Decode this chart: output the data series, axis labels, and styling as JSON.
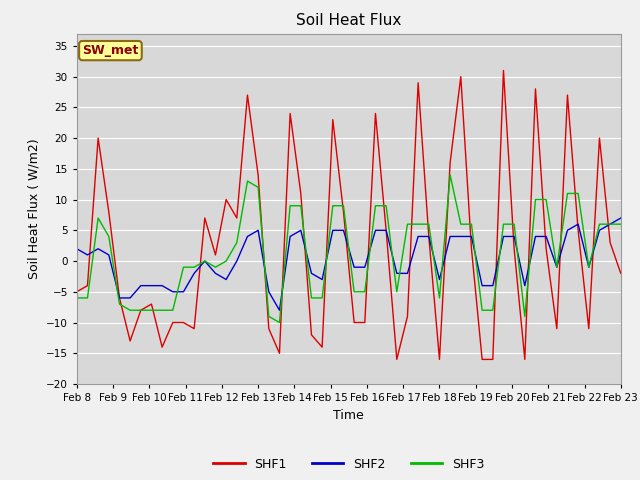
{
  "title": "Soil Heat Flux",
  "ylabel": "Soil Heat Flux ( W/m2)",
  "xlabel": "Time",
  "ylim": [
    -20,
    37
  ],
  "yticks": [
    -20,
    -15,
    -10,
    -5,
    0,
    5,
    10,
    15,
    20,
    25,
    30,
    35
  ],
  "annotation": "SW_met",
  "fig_facecolor": "#f0f0f0",
  "plot_facecolor": "#d8d8d8",
  "grid_color": "#ffffff",
  "shf1_color": "#dd0000",
  "shf2_color": "#0000cc",
  "shf3_color": "#00bb00",
  "x_labels": [
    "Feb 8",
    "Feb 9",
    "Feb 10",
    "Feb 11",
    "Feb 12",
    "Feb 13",
    "Feb 14",
    "Feb 15",
    "Feb 16",
    "Feb 17",
    "Feb 18",
    "Feb 19",
    "Feb 20",
    "Feb 21",
    "Feb 22",
    "Feb 23"
  ],
  "shf1": [
    -5,
    -4,
    20,
    8,
    -6,
    -13,
    -8,
    -7,
    -14,
    -10,
    -10,
    -11,
    7,
    1,
    10,
    7,
    27,
    14,
    -11,
    -15,
    24,
    11,
    -12,
    -14,
    23,
    8,
    -10,
    -10,
    24,
    5,
    -16,
    -9,
    29,
    4,
    -16,
    16,
    30,
    2,
    -16,
    -16,
    31,
    2,
    -16,
    28,
    2,
    -11,
    27,
    5,
    -11,
    20,
    3,
    -2
  ],
  "shf2": [
    2,
    1,
    2,
    1,
    -6,
    -6,
    -4,
    -4,
    -4,
    -5,
    -5,
    -2,
    0,
    -2,
    -3,
    0,
    4,
    5,
    -5,
    -8,
    4,
    5,
    -2,
    -3,
    5,
    5,
    -1,
    -1,
    5,
    5,
    -2,
    -2,
    4,
    4,
    -3,
    4,
    4,
    4,
    -4,
    -4,
    4,
    4,
    -4,
    4,
    4,
    -1,
    5,
    6,
    -1,
    5,
    6,
    7
  ],
  "shf3": [
    -6,
    -6,
    7,
    4,
    -7,
    -8,
    -8,
    -8,
    -8,
    -8,
    -1,
    -1,
    0,
    -1,
    0,
    3,
    13,
    12,
    -9,
    -10,
    9,
    9,
    -6,
    -6,
    9,
    9,
    -5,
    -5,
    9,
    9,
    -5,
    6,
    6,
    6,
    -6,
    14,
    6,
    6,
    -8,
    -8,
    6,
    6,
    -9,
    10,
    10,
    -1,
    11,
    11,
    -1,
    6,
    6,
    6
  ],
  "figsize": [
    6.4,
    4.8
  ],
  "dpi": 100,
  "linewidth": 1.0,
  "legend_fontsize": 9,
  "tick_fontsize": 7.5,
  "title_fontsize": 11,
  "label_fontsize": 9
}
